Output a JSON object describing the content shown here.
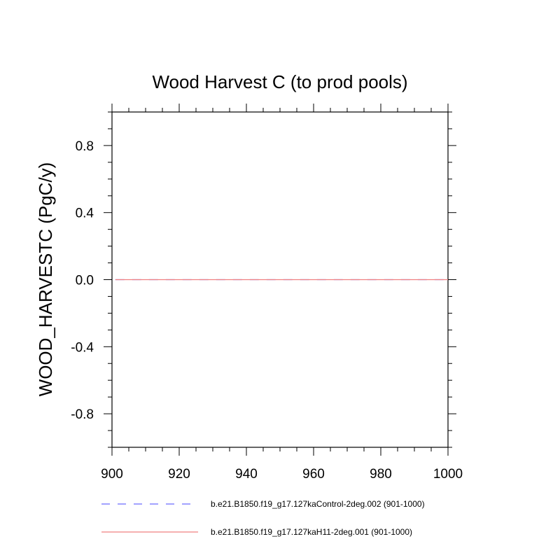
{
  "chart_data": {
    "type": "line",
    "title": "Wood Harvest C (to prod pools)",
    "xlabel": "",
    "ylabel": "WOOD_HARVESTC  (PgC/y)",
    "xlim": [
      900,
      1000
    ],
    "ylim": [
      -1.0,
      1.0
    ],
    "x_ticks": [
      900,
      920,
      940,
      960,
      980,
      1000
    ],
    "x_tick_labels": [
      "900",
      "920",
      "940",
      "960",
      "980",
      "1000"
    ],
    "y_ticks": [
      -0.8,
      -0.4,
      0.0,
      0.4,
      0.8
    ],
    "y_tick_labels": [
      "-0.8",
      "-0.4",
      "0.0",
      "0.4",
      "0.8"
    ],
    "grid": false,
    "legend_position": "bottom",
    "series": [
      {
        "name": "b.e21.B1850.f19_g17.127kaControl-2deg.002 (901-1000)",
        "color": "#6a6aff",
        "style": "dashed",
        "x": [
          901,
          1000
        ],
        "values": [
          0.0,
          0.0
        ]
      },
      {
        "name": "b.e21.B1850.f19_g17.127kaH11-2deg.001 (901-1000)",
        "color": "#f08080",
        "style": "solid",
        "x": [
          901,
          1000
        ],
        "values": [
          0.0,
          0.0
        ]
      }
    ]
  }
}
